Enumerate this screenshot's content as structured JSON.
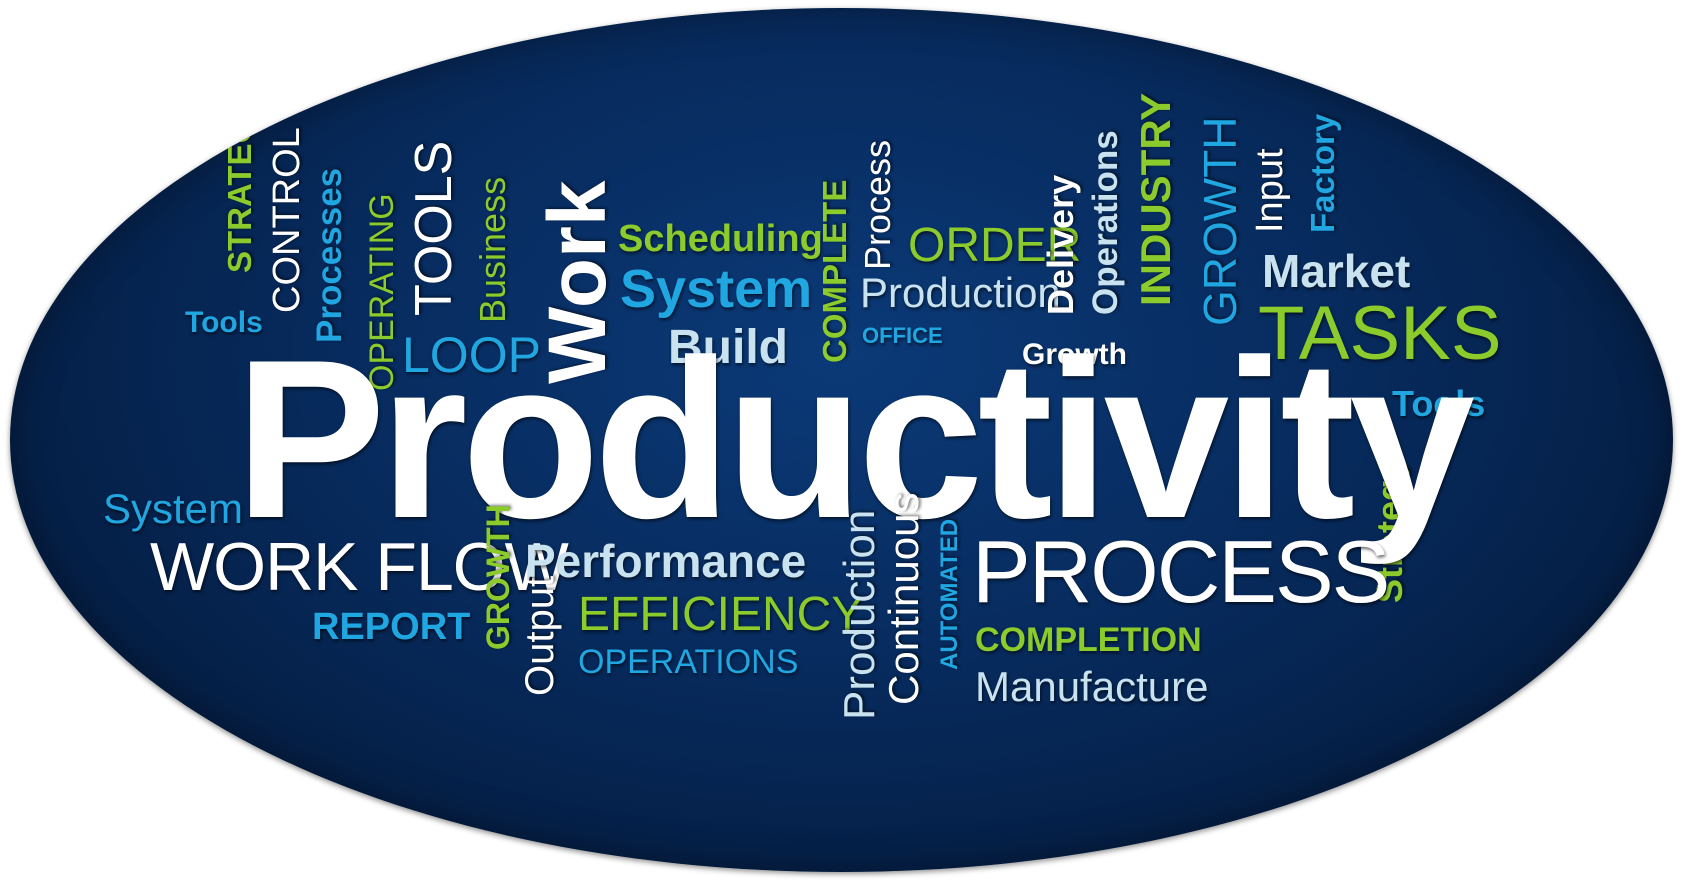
{
  "palette": {
    "background": "#062a5a",
    "white": "#ffffff",
    "light_blue": "#c9e2f0",
    "green": "#8ccb2c",
    "cyan": "#20a6e0"
  },
  "headline": "Productivity",
  "words": [
    "STRATEGY",
    "CONTROL",
    "Processes",
    "Tools",
    "OPERATING",
    "TOOLS",
    "Business",
    "LOOP",
    "Work",
    "Scheduling",
    "System",
    "Build",
    "COMPLETE",
    "Process",
    "Production",
    "ORDER",
    "OFFICE",
    "Delivery",
    "Operations",
    "INDUSTRY",
    "Growth",
    "GROWTH",
    "Input",
    "Factory",
    "Market",
    "TASKS",
    "Tools",
    "Strategy",
    "System",
    "WORK FLOW",
    "REPORT",
    "GROWTH",
    "Output",
    "Performance",
    "EFFICIENCY",
    "OPERATIONS",
    "Production",
    "Continuous",
    "AUTOMATED",
    "PROCESS",
    "COMPLETION",
    "Manufacture"
  ]
}
